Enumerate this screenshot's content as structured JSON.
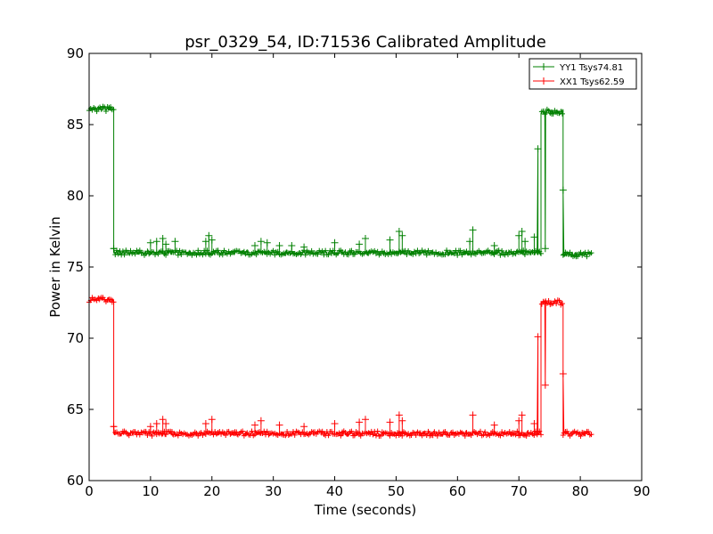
{
  "chart_data": {
    "type": "line",
    "title": "psr_0329_54, ID:71536 Calibrated Amplitude",
    "xlabel": "Time (seconds)",
    "ylabel": "Power in Kelvin",
    "xlim": [
      0,
      90
    ],
    "ylim": [
      60,
      90
    ],
    "xticks": [
      0,
      10,
      20,
      30,
      40,
      50,
      60,
      70,
      80,
      90
    ],
    "yticks": [
      60,
      65,
      70,
      75,
      80,
      85,
      90
    ],
    "legend_position": "top-right",
    "marker": "plus",
    "series": [
      {
        "name": "YY1 Tsys74.81",
        "color": "#008000",
        "segments": [
          {
            "t0": 0.0,
            "t1": 4.0,
            "level": 86.1
          },
          {
            "t0": 4.0,
            "t1": 73.6,
            "level": 76.0
          },
          {
            "t0": 73.6,
            "t1": 77.2,
            "level": 85.9
          },
          {
            "t0": 77.2,
            "t1": 81.8,
            "level": 75.9
          }
        ],
        "transitions": [
          {
            "x": 4.0,
            "y": 76.3
          },
          {
            "x": 73.1,
            "y": 83.3
          },
          {
            "x": 74.3,
            "y": 76.3
          },
          {
            "x": 77.2,
            "y": 80.4
          }
        ],
        "spikes": [
          {
            "x": 10.0,
            "y": 76.7
          },
          {
            "x": 11.0,
            "y": 76.8
          },
          {
            "x": 12.0,
            "y": 77.0
          },
          {
            "x": 12.5,
            "y": 76.6
          },
          {
            "x": 14.0,
            "y": 76.8
          },
          {
            "x": 19.0,
            "y": 76.8
          },
          {
            "x": 19.5,
            "y": 77.2
          },
          {
            "x": 20.0,
            "y": 76.9
          },
          {
            "x": 27.0,
            "y": 76.5
          },
          {
            "x": 28.0,
            "y": 76.8
          },
          {
            "x": 29.0,
            "y": 76.7
          },
          {
            "x": 31.0,
            "y": 76.5
          },
          {
            "x": 33.0,
            "y": 76.5
          },
          {
            "x": 35.0,
            "y": 76.4
          },
          {
            "x": 40.0,
            "y": 76.7
          },
          {
            "x": 44.0,
            "y": 76.6
          },
          {
            "x": 45.0,
            "y": 77.0
          },
          {
            "x": 49.0,
            "y": 76.9
          },
          {
            "x": 50.5,
            "y": 77.5
          },
          {
            "x": 51.0,
            "y": 77.2
          },
          {
            "x": 62.5,
            "y": 77.6
          },
          {
            "x": 62.0,
            "y": 76.8
          },
          {
            "x": 66.0,
            "y": 76.5
          },
          {
            "x": 70.0,
            "y": 77.2
          },
          {
            "x": 70.5,
            "y": 77.5
          },
          {
            "x": 71.0,
            "y": 76.8
          },
          {
            "x": 72.5,
            "y": 77.1
          }
        ]
      },
      {
        "name": "XX1 Tsys62.59",
        "color": "#ff0000",
        "segments": [
          {
            "t0": 0.0,
            "t1": 4.0,
            "level": 72.7
          },
          {
            "t0": 4.0,
            "t1": 73.6,
            "level": 63.3
          },
          {
            "t0": 73.6,
            "t1": 77.2,
            "level": 72.5
          },
          {
            "t0": 77.2,
            "t1": 81.8,
            "level": 63.3
          }
        ],
        "transitions": [
          {
            "x": 4.0,
            "y": 63.8
          },
          {
            "x": 73.1,
            "y": 70.1
          },
          {
            "x": 74.3,
            "y": 66.7
          },
          {
            "x": 77.2,
            "y": 67.5
          }
        ],
        "spikes": [
          {
            "x": 10.0,
            "y": 63.8
          },
          {
            "x": 11.0,
            "y": 64.0
          },
          {
            "x": 12.0,
            "y": 64.3
          },
          {
            "x": 12.5,
            "y": 64.0
          },
          {
            "x": 19.0,
            "y": 64.0
          },
          {
            "x": 20.0,
            "y": 64.3
          },
          {
            "x": 27.0,
            "y": 63.9
          },
          {
            "x": 28.0,
            "y": 64.2
          },
          {
            "x": 31.0,
            "y": 63.9
          },
          {
            "x": 35.0,
            "y": 63.8
          },
          {
            "x": 40.0,
            "y": 64.0
          },
          {
            "x": 44.0,
            "y": 64.1
          },
          {
            "x": 45.0,
            "y": 64.3
          },
          {
            "x": 49.0,
            "y": 64.1
          },
          {
            "x": 50.5,
            "y": 64.6
          },
          {
            "x": 51.0,
            "y": 64.2
          },
          {
            "x": 62.5,
            "y": 64.6
          },
          {
            "x": 66.0,
            "y": 63.9
          },
          {
            "x": 70.0,
            "y": 64.2
          },
          {
            "x": 70.5,
            "y": 64.6
          },
          {
            "x": 72.5,
            "y": 64.0
          }
        ]
      }
    ]
  }
}
